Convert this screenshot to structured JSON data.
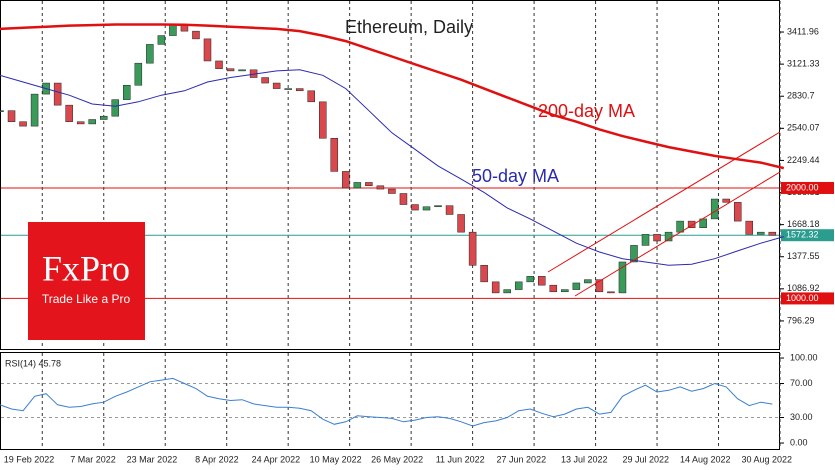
{
  "logo": {
    "brand": "FxPro",
    "tagline": "Trade Like a Pro"
  },
  "chart_data": [
    {
      "type": "candlestick",
      "title": "Ethereum, Daily",
      "up_color": "#3a9a5a",
      "down_color": "#d8484c",
      "x": [
        0,
        3,
        6,
        9,
        12,
        15,
        18,
        21,
        24,
        27,
        30,
        33,
        36,
        39,
        42,
        45,
        48,
        51,
        54,
        57,
        60,
        63,
        66,
        69,
        72,
        75,
        78,
        81,
        84,
        87,
        90,
        93,
        96,
        99,
        102,
        105,
        108,
        111,
        114,
        117,
        120,
        123,
        126,
        129,
        132,
        135,
        138,
        141,
        144,
        147,
        150,
        153,
        156,
        159,
        162,
        165,
        168,
        171,
        174,
        177,
        180,
        183,
        186,
        189,
        192,
        195,
        198,
        201
      ],
      "values": [
        2700,
        2600,
        2560,
        2850,
        2950,
        2750,
        2600,
        2580,
        2620,
        2650,
        2800,
        2930,
        3130,
        3300,
        3380,
        3480,
        3420,
        3350,
        3150,
        3080,
        3060,
        3070,
        3000,
        2950,
        2900,
        2900,
        2880,
        2780,
        2450,
        2150,
        2000,
        2050,
        2020,
        1990,
        1950,
        1850,
        1800,
        1830,
        1840,
        1760,
        1600,
        1300,
        1150,
        1050,
        1080,
        1150,
        1200,
        1120,
        1060,
        1080,
        1140,
        1170,
        1060,
        1050,
        1330,
        1480,
        1580,
        1520,
        1600,
        1700,
        1640,
        1720,
        1900,
        1870,
        1700,
        1580,
        1600,
        1572.32
      ],
      "series": [
        {
          "name": "200-day MA",
          "color": "#e01010",
          "x": [
            0,
            6,
            12,
            18,
            24,
            30,
            36,
            42,
            48,
            54,
            60,
            66,
            72,
            78,
            84,
            90,
            96,
            102,
            108,
            114,
            120,
            126,
            132,
            138,
            144,
            150,
            156,
            162,
            168,
            174,
            180,
            186,
            192,
            198,
            204
          ],
          "values": [
            3440,
            3450,
            3460,
            3470,
            3475,
            3480,
            3480,
            3480,
            3478,
            3470,
            3460,
            3450,
            3440,
            3420,
            3380,
            3330,
            3260,
            3190,
            3120,
            3050,
            2980,
            2900,
            2820,
            2740,
            2660,
            2600,
            2530,
            2470,
            2420,
            2370,
            2330,
            2290,
            2260,
            2230,
            2180
          ]
        },
        {
          "name": "50-day MA",
          "color": "#2a2ab0",
          "x": [
            0,
            6,
            12,
            18,
            24,
            30,
            36,
            42,
            48,
            54,
            60,
            66,
            72,
            78,
            84,
            90,
            96,
            102,
            108,
            114,
            120,
            126,
            132,
            138,
            144,
            150,
            156,
            162,
            168,
            174,
            180,
            186,
            192,
            198,
            204
          ],
          "values": [
            3020,
            2960,
            2900,
            2840,
            2760,
            2740,
            2780,
            2840,
            2880,
            2960,
            3000,
            3030,
            3060,
            3070,
            3020,
            2900,
            2700,
            2500,
            2350,
            2200,
            2080,
            1960,
            1820,
            1720,
            1610,
            1500,
            1420,
            1360,
            1330,
            1300,
            1310,
            1360,
            1430,
            1500,
            1560
          ]
        }
      ],
      "price_lines": [
        {
          "value": 2000,
          "label": "2000.00",
          "color": "#e01010"
        },
        {
          "value": 1000,
          "label": "1000.00",
          "color": "#e01010"
        },
        {
          "value": 1572.32,
          "color": "#2a9d8f"
        }
      ],
      "xlim": [
        0,
        203
      ],
      "xticks": [
        {
          "value": 11,
          "label": "19 Feb 2022"
        },
        {
          "value": 27,
          "label": "7 Mar 2022"
        },
        {
          "value": 43,
          "label": "23 Mar 2022"
        },
        {
          "value": 59,
          "label": "8 Apr 2022"
        },
        {
          "value": 75,
          "label": "24 Apr 2022"
        },
        {
          "value": 91,
          "label": "10 May 2022"
        },
        {
          "value": 107,
          "label": "26 May 2022"
        },
        {
          "value": 123,
          "label": "11 Jun 2022"
        },
        {
          "value": 139,
          "label": "27 Jun 2022"
        },
        {
          "value": 155,
          "label": "13 Jul 2022"
        },
        {
          "value": 171,
          "label": "29 Jul 2022"
        },
        {
          "value": 187,
          "label": "14 Aug 2022"
        },
        {
          "value": 203,
          "label": "30 Aug 2022"
        }
      ],
      "ylim": [
        533,
        3702
      ],
      "yticks": [
        3411.96,
        3121.33,
        2830.7,
        2540.07,
        2249.44,
        1958.81,
        1668.18,
        1377.55,
        1086.92,
        796.29
      ]
    },
    {
      "type": "line",
      "title": "RSI(14) 45.78",
      "color": "#3a7fd0",
      "x": [
        0,
        3,
        6,
        9,
        12,
        15,
        18,
        21,
        24,
        27,
        30,
        33,
        36,
        39,
        42,
        45,
        48,
        51,
        54,
        57,
        60,
        63,
        66,
        69,
        72,
        75,
        78,
        81,
        84,
        87,
        90,
        93,
        96,
        99,
        102,
        105,
        108,
        111,
        114,
        117,
        120,
        123,
        126,
        129,
        132,
        135,
        138,
        141,
        144,
        147,
        150,
        153,
        156,
        159,
        162,
        165,
        168,
        171,
        174,
        177,
        180,
        183,
        186,
        189,
        192,
        195,
        198,
        201
      ],
      "values": [
        45,
        40,
        38,
        55,
        58,
        45,
        42,
        43,
        46,
        48,
        55,
        60,
        66,
        72,
        74,
        76,
        70,
        64,
        55,
        52,
        50,
        51,
        46,
        44,
        42,
        42,
        41,
        38,
        28,
        22,
        25,
        32,
        31,
        30,
        29,
        25,
        27,
        30,
        31,
        29,
        25,
        20,
        24,
        26,
        30,
        38,
        40,
        35,
        31,
        34,
        40,
        42,
        34,
        36,
        55,
        62,
        68,
        60,
        62,
        66,
        61,
        64,
        70,
        66,
        52,
        44,
        48,
        45.78
      ],
      "xlim": [
        0,
        203
      ],
      "ylim": [
        -8.2,
        107.1
      ],
      "yticks": [
        {
          "value": 100,
          "label": "100.00"
        },
        {
          "value": 70,
          "label": "70.00"
        },
        {
          "value": 30,
          "label": "30.00"
        },
        {
          "value": 0,
          "label": "0.00"
        }
      ],
      "levels": [
        70,
        30
      ]
    }
  ]
}
